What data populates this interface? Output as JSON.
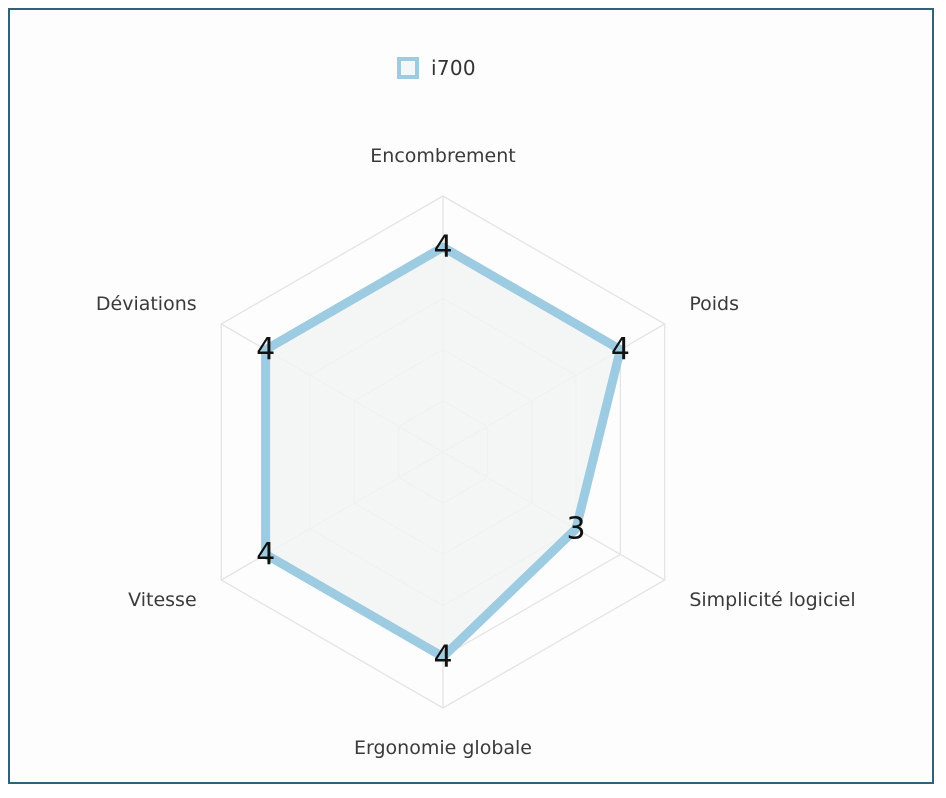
{
  "chart_data": {
    "type": "radar",
    "axes": [
      "Encombrement",
      "Poids",
      "Simplicité logiciel",
      "Ergonomie globale",
      "Vitesse",
      "Déviations"
    ],
    "series": [
      {
        "name": "i700",
        "values": [
          4,
          4,
          3,
          4,
          4,
          4
        ],
        "color": "#9ccbe2"
      }
    ],
    "range": [
      0,
      5
    ],
    "levels": 5,
    "legend_position": "top-center",
    "grid_color": "#e4e4e4",
    "fill_color": "#f2f4f5"
  }
}
